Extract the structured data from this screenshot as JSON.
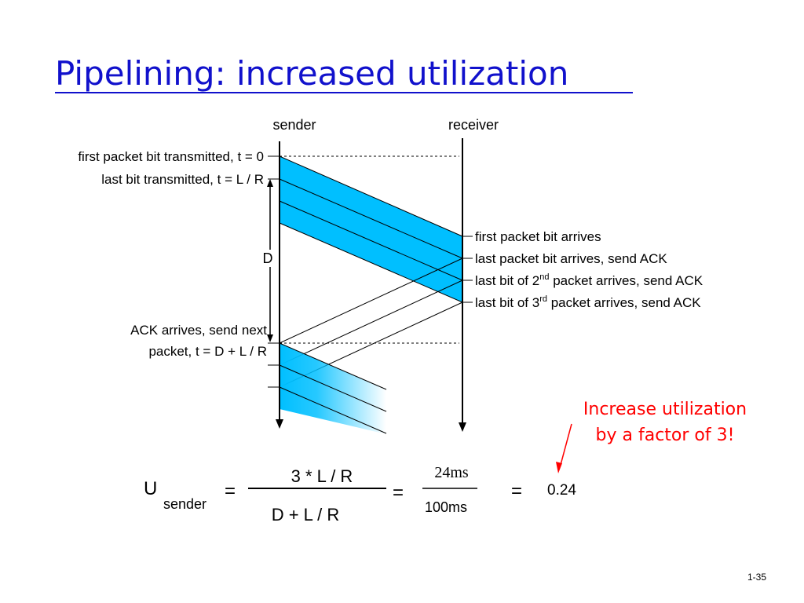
{
  "slide": {
    "title": "Pipelining: increased utilization",
    "page_number": "1-35"
  },
  "diagram": {
    "sender_label": "sender",
    "receiver_label": "receiver",
    "left_labels": {
      "first_bit": "first packet bit transmitted, t = 0",
      "last_bit": "last bit transmitted, t = L / R",
      "delay": "D",
      "ack_line1": "ACK arrives, send next",
      "ack_line2": "packet, t = D + L / R"
    },
    "right_labels": {
      "first_arrives": "first packet bit arrives",
      "last_arrives": "last packet bit arrives, send ACK",
      "second_prefix": "last bit of 2",
      "second_sup": "nd",
      "second_suffix": " packet arrives, send ACK",
      "third_prefix": "last bit of 3",
      "third_sup": "rd",
      "third_suffix": " packet arrives, send ACK"
    },
    "colors": {
      "packet_fill": "#00bfff",
      "annotation": "#ff0000",
      "title": "#1111cc"
    }
  },
  "annotation": {
    "line1": "Increase utilization",
    "line2": "by a factor of 3!"
  },
  "formula": {
    "u": "U",
    "subscript": "sender",
    "equals": "=",
    "numerator": "3 * L / R",
    "denominator": "D + L / R",
    "numerator2": "24ms",
    "denominator2": "100ms",
    "result": "0.24"
  }
}
